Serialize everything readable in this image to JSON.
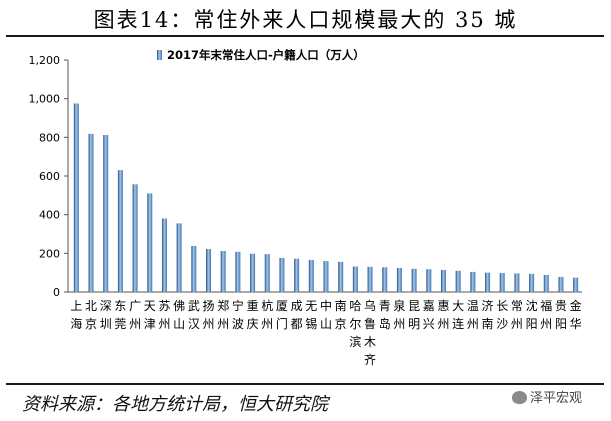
{
  "title": "图表14：常住外来人口规模最大的 35 城",
  "source": "资料来源：各地方统计局，恒大研究院",
  "watermark": "泽平宏观",
  "colors": {
    "bar": "#3d78b5",
    "bar_dark": "#1e4f85",
    "bar_light": "#a9c6e6"
  },
  "chart_data": {
    "type": "bar",
    "title": "",
    "xlabel": "",
    "ylabel": "",
    "ylim": [
      0,
      1200
    ],
    "yticks": [
      0,
      200,
      400,
      600,
      800,
      1000,
      1200
    ],
    "ytick_labels": [
      "0",
      "200",
      "400",
      "600",
      "800",
      "1,000",
      "1,200"
    ],
    "grid": false,
    "legend_position": "top-center",
    "categories": [
      "上海",
      "北京",
      "深圳",
      "东莞",
      "广州",
      "天津",
      "苏州",
      "佛山",
      "武汉",
      "扬州",
      "郑州",
      "宁波",
      "重庆",
      "杭州",
      "厦门",
      "成都",
      "无锡",
      "中山",
      "南京",
      "哈尔滨",
      "乌鲁木齐",
      "青岛",
      "泉州",
      "昆明",
      "嘉兴",
      "惠州",
      "大连",
      "温州",
      "济南",
      "长沙",
      "常州",
      "沈阳",
      "福州",
      "贵阳",
      "金华"
    ],
    "series": [
      {
        "name": "2017年末常住人口-户籍人口（万人）",
        "values": [
          975,
          818,
          812,
          630,
          557,
          510,
          380,
          355,
          238,
          222,
          212,
          208,
          198,
          196,
          176,
          172,
          166,
          160,
          156,
          132,
          130,
          128,
          124,
          120,
          118,
          114,
          110,
          104,
          100,
          98,
          96,
          94,
          88,
          78,
          74
        ]
      }
    ]
  }
}
